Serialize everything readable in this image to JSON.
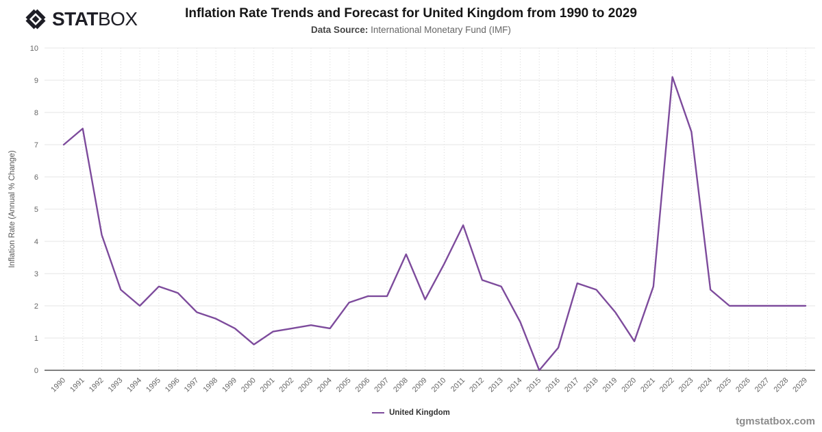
{
  "logo": {
    "text_bold": "STAT",
    "text_light": "BOX",
    "color": "#1e1e26"
  },
  "header": {
    "title": "Inflation Rate Trends and Forecast for United Kingdom from 1990 to 2029",
    "subtitle_label": "Data Source:",
    "subtitle_value": "International Monetary Fund (IMF)"
  },
  "legend": {
    "label": "United Kingdom",
    "swatch_color": "#7d4b9c"
  },
  "watermark": "tgmstatbox.com",
  "chart_data": {
    "type": "line",
    "title": "Inflation Rate Trends and Forecast for United Kingdom from 1990 to 2029",
    "xlabel": "",
    "ylabel": "Inflation Rate (Annual % Change)",
    "ylim": [
      0,
      10
    ],
    "y_ticks": [
      0,
      1,
      2,
      3,
      4,
      5,
      6,
      7,
      8,
      9,
      10
    ],
    "grid": true,
    "legend_position": "bottom",
    "categories": [
      1990,
      1991,
      1992,
      1993,
      1994,
      1995,
      1996,
      1997,
      1998,
      1999,
      2000,
      2001,
      2002,
      2003,
      2004,
      2005,
      2006,
      2007,
      2008,
      2009,
      2010,
      2011,
      2012,
      2013,
      2014,
      2015,
      2016,
      2017,
      2018,
      2019,
      2020,
      2021,
      2022,
      2023,
      2024,
      2025,
      2026,
      2027,
      2028,
      2029
    ],
    "series": [
      {
        "name": "United Kingdom",
        "color": "#7d4b9c",
        "values": [
          7.0,
          7.5,
          4.2,
          2.5,
          2.0,
          2.6,
          2.4,
          1.8,
          1.6,
          1.3,
          0.8,
          1.2,
          1.3,
          1.4,
          1.3,
          2.1,
          2.3,
          2.3,
          3.6,
          2.2,
          3.3,
          4.5,
          2.8,
          2.6,
          1.5,
          0.0,
          0.7,
          2.7,
          2.5,
          1.8,
          0.9,
          2.6,
          9.1,
          7.4,
          2.5,
          2.0,
          2.0,
          2.0,
          2.0,
          2.0
        ]
      }
    ]
  }
}
